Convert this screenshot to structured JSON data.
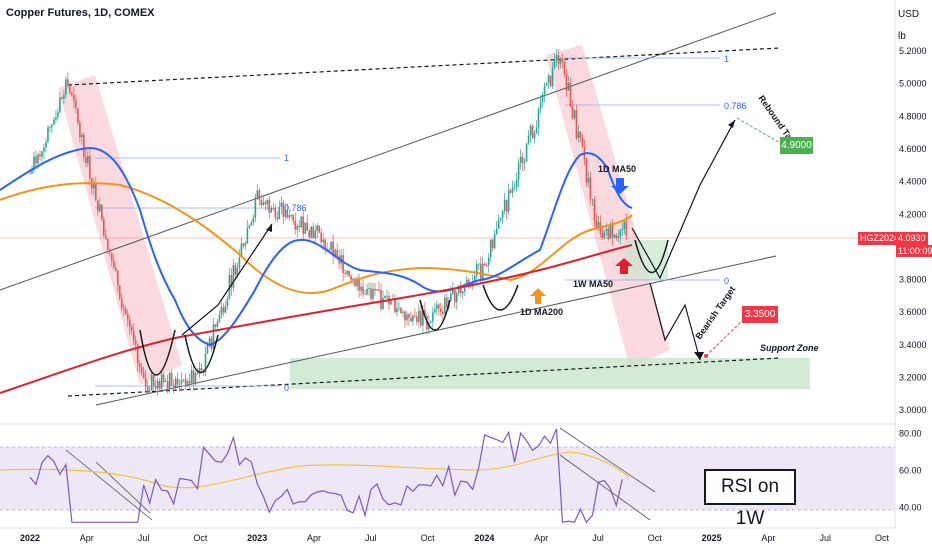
{
  "header": {
    "title": "Copper Futures, 1D, COMEX"
  },
  "axis": {
    "currency": "USD",
    "unit": "lb",
    "y_ticks": [
      "5.2000",
      "5.0000",
      "4.8000",
      "4.6000",
      "4.4000",
      "4.2000",
      "3.8000",
      "3.6000",
      "3.4000",
      "3.2000",
      "3.0000"
    ],
    "rsi_ticks": [
      "80.00",
      "60.00",
      "40.00"
    ],
    "x_ticks": [
      "2022",
      "Apr",
      "Jul",
      "Oct",
      "2023",
      "Apr",
      "Jul",
      "Oct",
      "2024",
      "Apr",
      "Jul",
      "Oct",
      "2025",
      "Apr",
      "Jul",
      "Oct"
    ]
  },
  "price_label": {
    "symbol": "HGZ2024",
    "value": "4.0930",
    "timer": "11:00:09"
  },
  "annotations": {
    "fib_1_left": "1",
    "fib_0786_left": "0.786",
    "fib_0_left": "0",
    "fib_1_right": "1",
    "fib_0786_right": "0.786",
    "fib_0_right": "0",
    "ma50_label": "1D MA50",
    "ma200_label": "1D MA200",
    "w_ma50_label": "1W MA50",
    "rebound": "Rebound Target",
    "rebound_value": "4.9000",
    "bearish": "Bearish Target",
    "bearish_value": "3.3500",
    "support": "Support Zone",
    "rsi": "RSI on 1W"
  },
  "colors": {
    "up": "#26a69a",
    "down": "#ef5350",
    "ma50": "#2962ff",
    "ma200": "#f7931a",
    "w_ma50": "#e0202e",
    "rsi": "#7e57c2",
    "rsi_ma": "#f5c242",
    "support_zone": "#c8e6c9",
    "red_channel": "#f8bbc4"
  },
  "chart_data": {
    "type": "candlestick",
    "symbol": "HGZ2024",
    "timeframe": "1D",
    "y_range": [
      2.94,
      5.5
    ],
    "last_price": 4.093,
    "key_points": [
      {
        "date": "2022-01",
        "price": 4.45
      },
      {
        "date": "2022-03",
        "price": 5.0
      },
      {
        "date": "2022-07",
        "price": 3.15
      },
      {
        "date": "2022-10",
        "price": 3.22
      },
      {
        "date": "2023-01",
        "price": 4.3
      },
      {
        "date": "2023-04",
        "price": 4.1
      },
      {
        "date": "2023-07",
        "price": 3.7
      },
      {
        "date": "2023-10",
        "price": 3.55
      },
      {
        "date": "2024-01",
        "price": 3.88
      },
      {
        "date": "2024-05",
        "price": 5.2
      },
      {
        "date": "2024-07",
        "price": 4.1
      },
      {
        "date": "2024-08",
        "price": 4.1
      }
    ],
    "projection": [
      {
        "target": "Rebound Target",
        "value": 4.9
      },
      {
        "target": "Bearish Target",
        "value": 3.35
      }
    ],
    "support_zone": [
      3.15,
      3.35
    ],
    "rsi": {
      "y_range": [
        30,
        85
      ],
      "ticks": [
        80,
        60,
        40
      ]
    }
  }
}
